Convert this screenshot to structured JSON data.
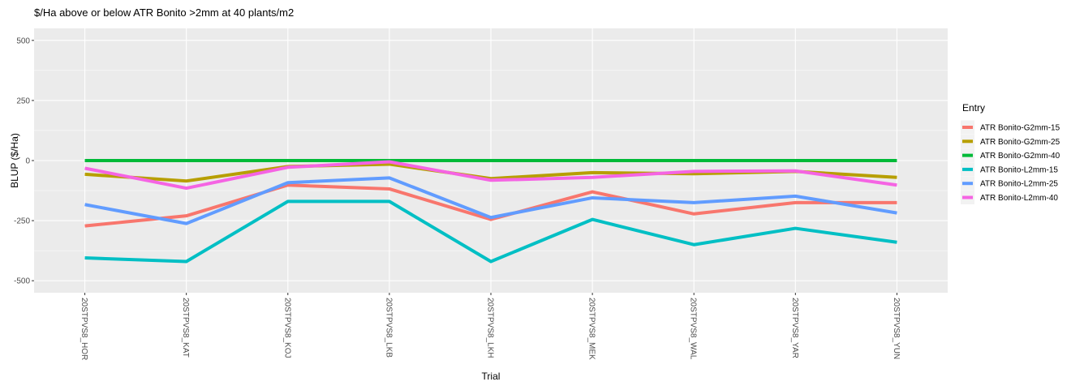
{
  "chart_data": {
    "type": "line",
    "title": "$/Ha above or below ATR Bonito >2mm at 40 plants/m2",
    "xlabel": "Trial",
    "ylabel": "BLUP ($/Ha)",
    "ylim": [
      -550,
      550
    ],
    "yticks": [
      500,
      250,
      0,
      -250,
      -500
    ],
    "ytick_labels": [
      "500",
      "250",
      "0",
      "-250",
      "-500"
    ],
    "grid": true,
    "legend_title": "Entry",
    "legend_position": "right",
    "categories": [
      "20STPVS8_HOR",
      "20STPVS8_KAT",
      "20STPVS8_KOJ",
      "20STPVS8_LKB",
      "20STPVS8_LKH",
      "20STPVS8_MEK",
      "20STPVS8_WAL",
      "20STPVS8_YAR",
      "20STPVS8_YUN"
    ],
    "series": [
      {
        "name": "ATR Bonito-G2mm-15",
        "color": "#F8766D",
        "values": [
          -272,
          -230,
          -102,
          -118,
          -245,
          -130,
          -222,
          -175,
          -175
        ]
      },
      {
        "name": "ATR Bonito-G2mm-25",
        "color": "#B79F00",
        "values": [
          -57,
          -85,
          -25,
          -15,
          -75,
          -50,
          -55,
          -45,
          -70
        ]
      },
      {
        "name": "ATR Bonito-G2mm-40",
        "color": "#00BA38",
        "values": [
          0,
          0,
          0,
          0,
          0,
          0,
          0,
          0,
          0
        ]
      },
      {
        "name": "ATR Bonito-L2mm-15",
        "color": "#00BFC4",
        "values": [
          -405,
          -420,
          -170,
          -170,
          -420,
          -245,
          -350,
          -282,
          -340
        ]
      },
      {
        "name": "ATR Bonito-L2mm-25",
        "color": "#619CFF",
        "values": [
          -183,
          -262,
          -92,
          -72,
          -237,
          -155,
          -175,
          -148,
          -218
        ]
      },
      {
        "name": "ATR Bonito-L2mm-40",
        "color": "#F564E3",
        "values": [
          -32,
          -115,
          -28,
          -5,
          -82,
          -70,
          -45,
          -43,
          -102
        ]
      }
    ]
  }
}
